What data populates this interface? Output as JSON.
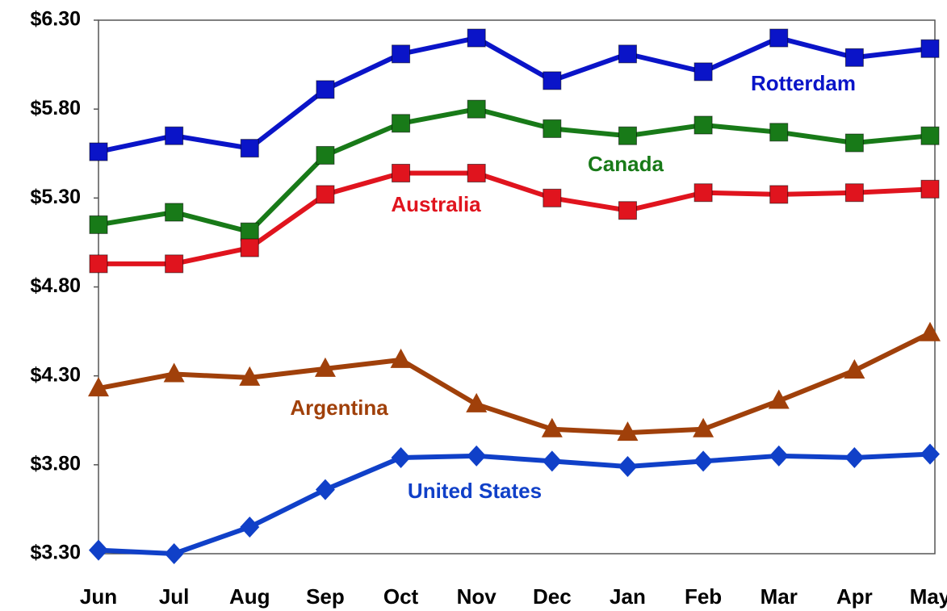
{
  "chart_data": {
    "type": "line",
    "categories": [
      "Jun",
      "Jul",
      "Aug",
      "Sep",
      "Oct",
      "Nov",
      "Dec",
      "Jan",
      "Feb",
      "Mar",
      "Apr",
      "May"
    ],
    "ylim": [
      3.3,
      6.3
    ],
    "yticks": [
      {
        "value": 3.3,
        "label": "$3.30"
      },
      {
        "value": 3.8,
        "label": "$3.80"
      },
      {
        "value": 4.3,
        "label": "$4.30"
      },
      {
        "value": 4.8,
        "label": "$4.80"
      },
      {
        "value": 5.3,
        "label": "$5.30"
      },
      {
        "value": 5.8,
        "label": "$5.80"
      },
      {
        "value": 6.3,
        "label": "$6.30"
      }
    ],
    "grid": false,
    "series": [
      {
        "name": "Rotterdam",
        "color": "#0a14c8",
        "marker": "square",
        "values": [
          5.56,
          5.65,
          5.58,
          5.91,
          6.11,
          6.2,
          5.96,
          6.11,
          6.01,
          6.2,
          6.09,
          6.14
        ]
      },
      {
        "name": "Canada",
        "color": "#187a18",
        "marker": "square",
        "values": [
          5.15,
          5.22,
          5.11,
          5.54,
          5.72,
          5.8,
          5.69,
          5.65,
          5.71,
          5.67,
          5.61,
          5.65
        ]
      },
      {
        "name": "Australia",
        "color": "#e0141e",
        "marker": "square",
        "values": [
          4.93,
          4.93,
          5.02,
          5.32,
          5.44,
          5.44,
          5.3,
          5.23,
          5.33,
          5.32,
          5.33,
          5.35
        ]
      },
      {
        "name": "Argentina",
        "color": "#a0400a",
        "marker": "triangle",
        "values": [
          4.23,
          4.31,
          4.29,
          4.34,
          4.39,
          4.14,
          4.0,
          3.98,
          4.0,
          4.16,
          4.33,
          4.54
        ]
      },
      {
        "name": "United States",
        "color": "#1040c8",
        "marker": "diamond",
        "values": [
          3.32,
          3.3,
          3.45,
          3.66,
          3.84,
          3.85,
          3.82,
          3.79,
          3.82,
          3.85,
          3.84,
          3.86
        ]
      }
    ]
  }
}
